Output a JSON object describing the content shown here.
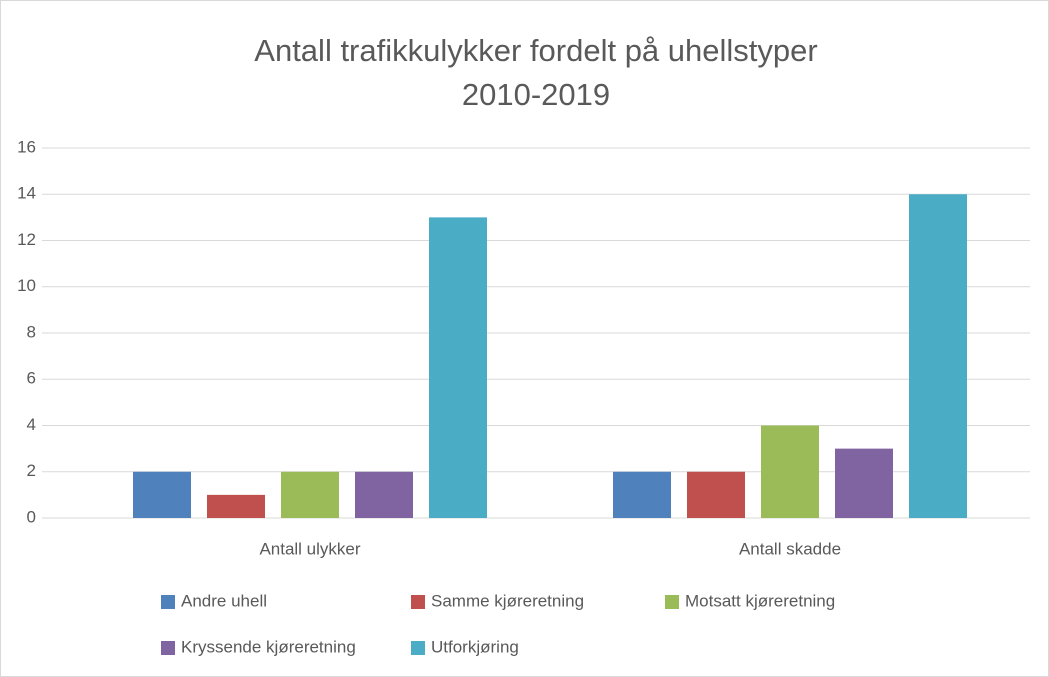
{
  "chart_data": {
    "type": "bar",
    "title": [
      "Antall trafikkulykker fordelt på uhellstyper",
      "2010-2019"
    ],
    "categories": [
      "Antall ulykker",
      "Antall skadde"
    ],
    "series": [
      {
        "name": "Andre uhell",
        "color": "#4f81bd",
        "values": [
          2,
          2
        ]
      },
      {
        "name": "Samme kjøreretning",
        "color": "#c0504d",
        "values": [
          1,
          2
        ]
      },
      {
        "name": "Motsatt kjøreretning",
        "color": "#9bbb59",
        "values": [
          2,
          4
        ]
      },
      {
        "name": "Kryssende kjøreretning",
        "color": "#8064a2",
        "values": [
          2,
          3
        ]
      },
      {
        "name": "Utforkjøring",
        "color": "#4bacc6",
        "values": [
          13,
          14
        ]
      }
    ],
    "ylim": [
      0,
      16
    ],
    "yticks": [
      0,
      2,
      4,
      6,
      8,
      10,
      12,
      14,
      16
    ],
    "grid": true,
    "legend": "bottom"
  }
}
